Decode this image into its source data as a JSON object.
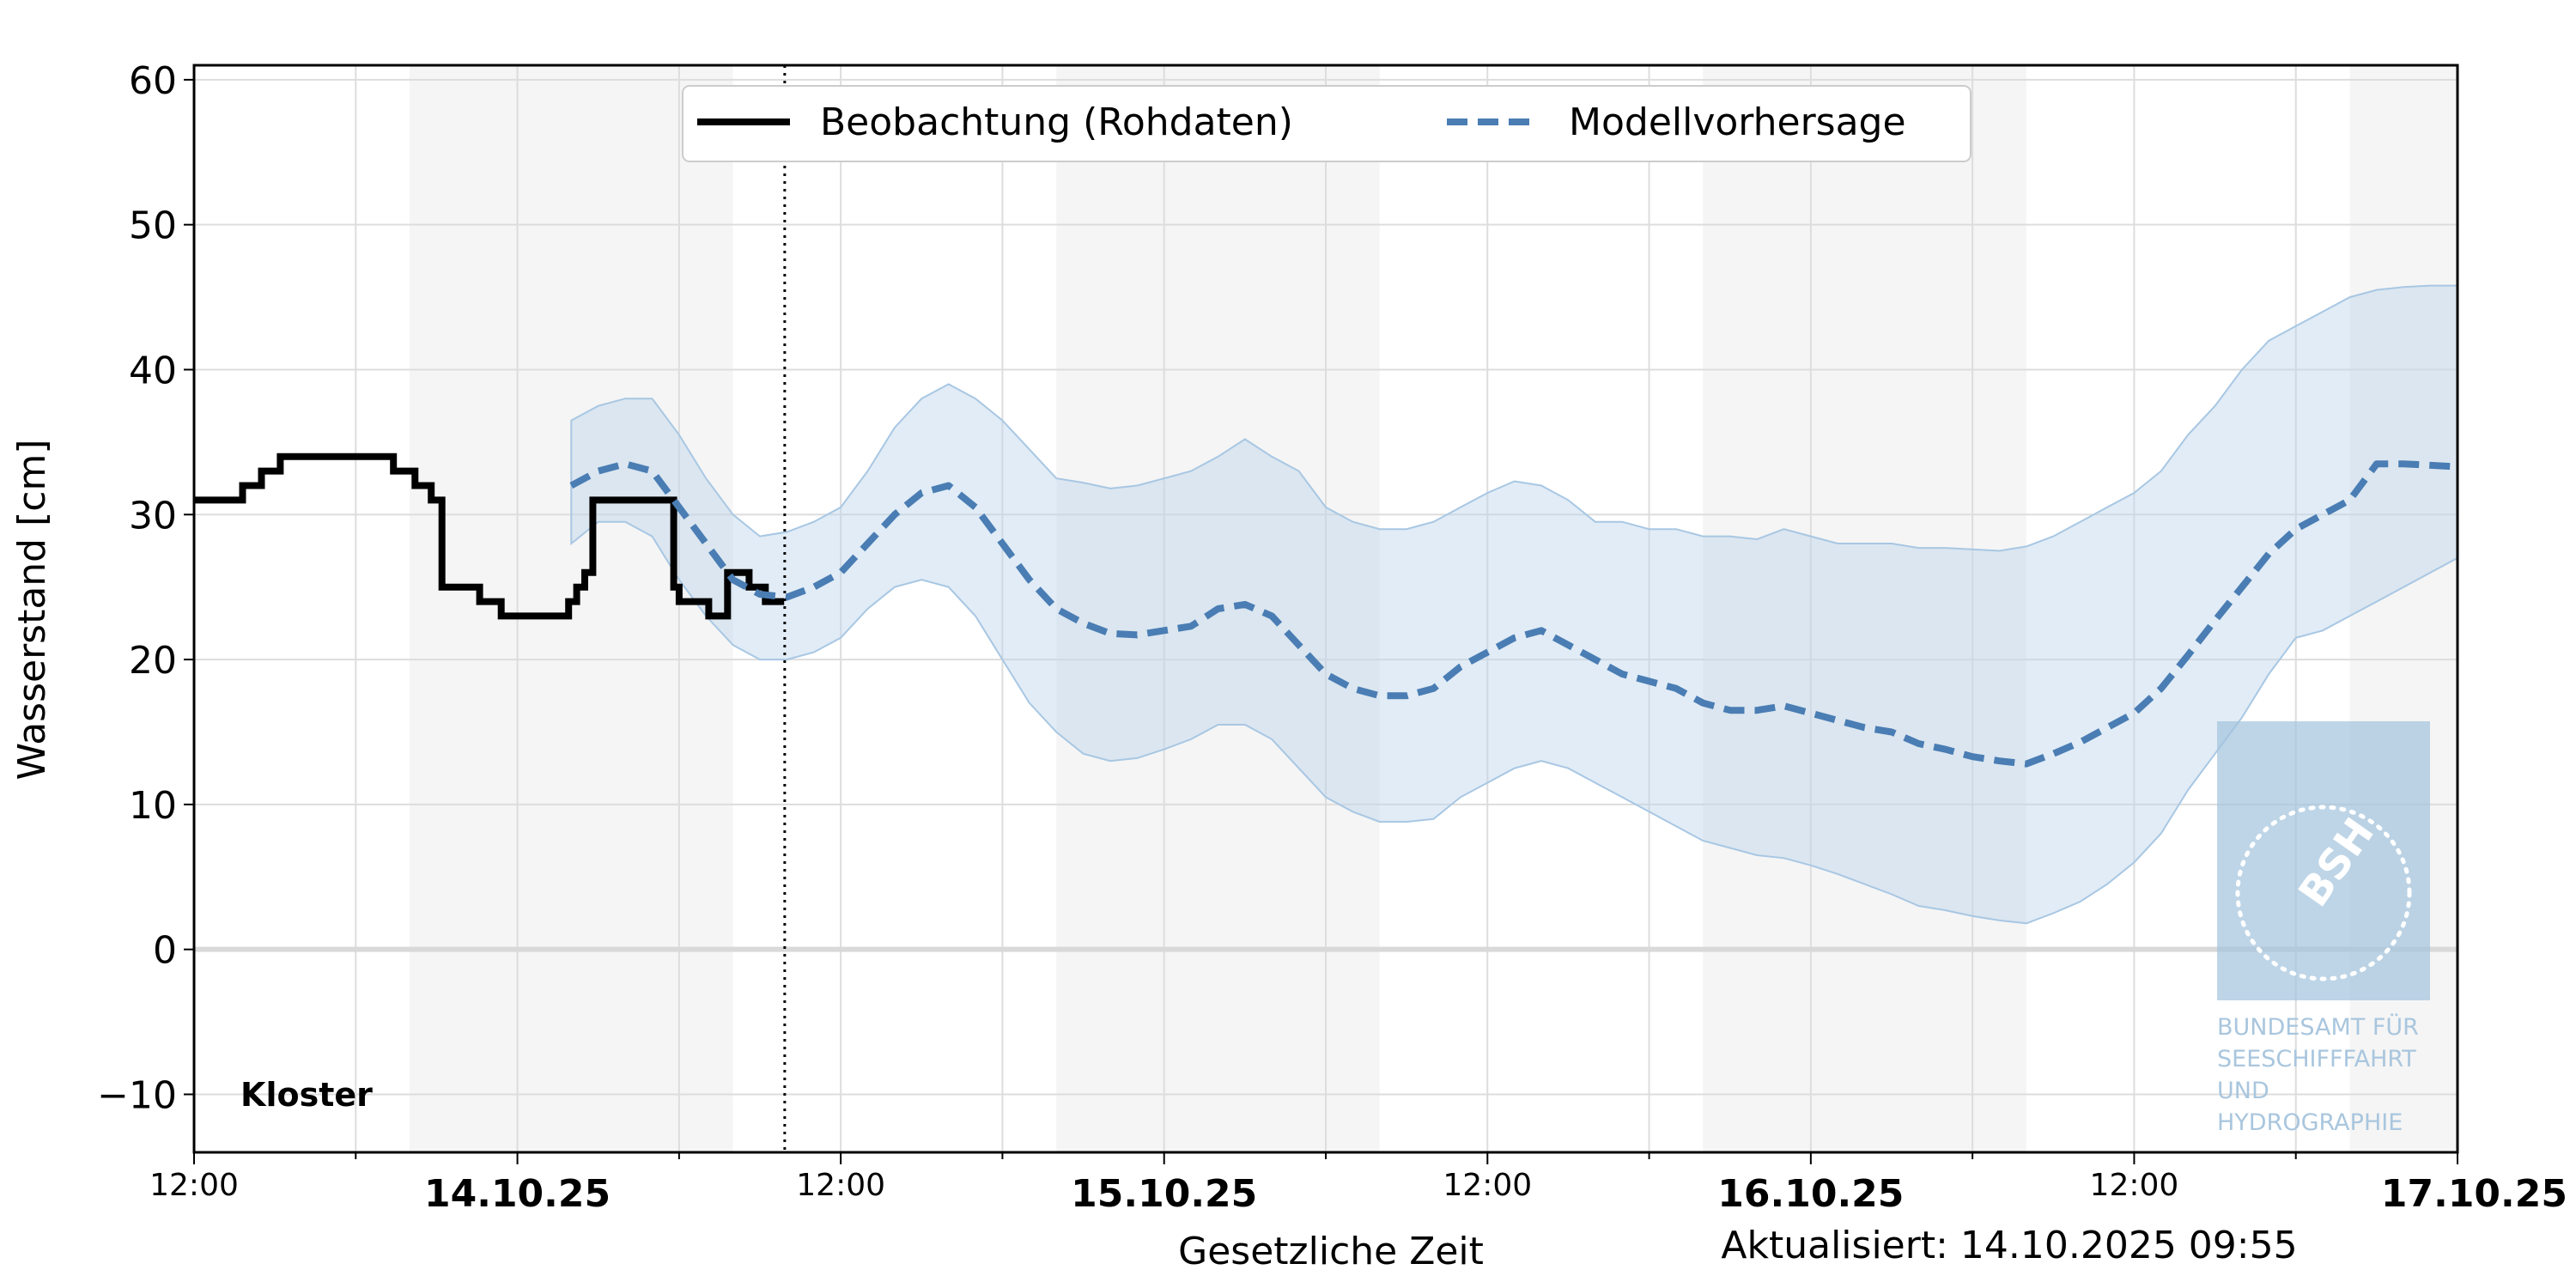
{
  "chart_data": {
    "type": "line",
    "title": "",
    "xlabel": "Gesetzliche Zeit",
    "ylabel": "Wasserstand [cm]",
    "location_label": "Kloster",
    "updated_label": "Aktualisiert: 14.10.2025 09:55",
    "ylim": [
      -14,
      61
    ],
    "yticks": [
      -10,
      0,
      10,
      20,
      30,
      40,
      50,
      60
    ],
    "ytick_labels": [
      "−10",
      "0",
      "10",
      "20",
      "30",
      "40",
      "50",
      "60"
    ],
    "xlim_hours": [
      -12,
      72
    ],
    "x_origin": "14.10.2025 00:00",
    "grid": true,
    "legend_placement": "top-center",
    "xtick_labels": [
      {
        "h": -12,
        "label": "12:00",
        "bold": false
      },
      {
        "h": 0,
        "label": "14.10.25",
        "bold": true
      },
      {
        "h": 12,
        "label": "12:00",
        "bold": false
      },
      {
        "h": 24,
        "label": "15.10.25",
        "bold": true
      },
      {
        "h": 36,
        "label": "12:00",
        "bold": false
      },
      {
        "h": 48,
        "label": "16.10.25",
        "bold": true
      },
      {
        "h": 60,
        "label": "12:00",
        "bold": false
      },
      {
        "h": 72,
        "label": "17.10.25",
        "bold": true
      }
    ],
    "night_bands": [
      [
        -4,
        8
      ],
      [
        20,
        32
      ],
      [
        44,
        56
      ],
      [
        68,
        72
      ]
    ],
    "now_hour": 9.92,
    "series": [
      {
        "name": "Beobachtung (Rohdaten)",
        "color": "#000000",
        "style": "solid-step",
        "x": [
          -12,
          -10.8,
          -10.2,
          -9.5,
          -8.8,
          -5.4,
          -4.6,
          -4.2,
          -3.8,
          -3.2,
          -2.8,
          -1.4,
          -0.6,
          1.7,
          1.9,
          2.2,
          2.5,
          2.8,
          3.1,
          3.4,
          4.6,
          5.8,
          6.0,
          6.6,
          7.1,
          7.8,
          8.3,
          8.6,
          9.2,
          9.9
        ],
        "y": [
          31,
          31,
          32,
          33,
          34,
          34,
          33,
          33,
          32,
          31,
          25,
          24,
          23,
          23,
          24,
          25,
          26,
          31,
          31,
          31,
          31,
          25,
          24,
          24,
          23,
          26,
          26,
          25,
          24,
          24
        ]
      },
      {
        "name": "Modellvorhersage",
        "color": "#4a7db3",
        "style": "dashed",
        "x": [
          2,
          3,
          4,
          5,
          6,
          7,
          8,
          9,
          10,
          11,
          12,
          13,
          14,
          15,
          16,
          17,
          18,
          19,
          20,
          21,
          22,
          23,
          24,
          25,
          26,
          27,
          28,
          29,
          30,
          31,
          32,
          33,
          34,
          35,
          36,
          37,
          38,
          39,
          40,
          41,
          42,
          43,
          44,
          45,
          46,
          47,
          48,
          49,
          50,
          51,
          52,
          53,
          54,
          55,
          56,
          57,
          58,
          59,
          60,
          61,
          62,
          63,
          64,
          65,
          66,
          67,
          68,
          69,
          70,
          71,
          72
        ],
        "y": [
          32.0,
          33.0,
          33.5,
          33.0,
          30.5,
          28.0,
          25.5,
          24.5,
          24.3,
          25.0,
          26.0,
          28.0,
          30.0,
          31.5,
          32.0,
          30.5,
          28.0,
          25.5,
          23.5,
          22.5,
          21.8,
          21.7,
          22.0,
          22.3,
          23.5,
          23.8,
          23.0,
          21.0,
          19.0,
          18.0,
          17.5,
          17.5,
          18.0,
          19.5,
          20.5,
          21.5,
          22.0,
          21.0,
          20.0,
          19.0,
          18.5,
          18.0,
          17.0,
          16.5,
          16.5,
          16.8,
          16.3,
          15.8,
          15.3,
          15.0,
          14.2,
          13.8,
          13.3,
          13.0,
          12.8,
          13.5,
          14.3,
          15.3,
          16.3,
          18.0,
          20.3,
          22.7,
          25.0,
          27.3,
          29.0,
          30.0,
          31.0,
          33.5,
          33.5,
          33.4,
          33.3
        ]
      }
    ],
    "band": {
      "color": "#bcd4ea",
      "x": [
        2,
        3,
        4,
        5,
        6,
        7,
        8,
        9,
        10,
        11,
        12,
        13,
        14,
        15,
        16,
        17,
        18,
        19,
        20,
        21,
        22,
        23,
        24,
        25,
        26,
        27,
        28,
        29,
        30,
        31,
        32,
        33,
        34,
        35,
        36,
        37,
        38,
        39,
        40,
        41,
        42,
        43,
        44,
        45,
        46,
        47,
        48,
        49,
        50,
        51,
        52,
        53,
        54,
        55,
        56,
        57,
        58,
        59,
        60,
        61,
        62,
        63,
        64,
        65,
        66,
        67,
        68,
        69,
        70,
        71,
        72
      ],
      "low": [
        28.0,
        29.5,
        29.5,
        28.5,
        25.5,
        23.0,
        21.0,
        20.0,
        20.0,
        20.5,
        21.5,
        23.5,
        25.0,
        25.5,
        25.0,
        23.0,
        20.0,
        17.0,
        15.0,
        13.5,
        13.0,
        13.2,
        13.8,
        14.5,
        15.5,
        15.5,
        14.5,
        12.5,
        10.5,
        9.5,
        8.8,
        8.8,
        9.0,
        10.5,
        11.5,
        12.5,
        13.0,
        12.5,
        11.5,
        10.5,
        9.5,
        8.5,
        7.5,
        7.0,
        6.5,
        6.3,
        5.8,
        5.2,
        4.5,
        3.8,
        3.0,
        2.7,
        2.3,
        2.0,
        1.8,
        2.5,
        3.3,
        4.5,
        6.0,
        8.0,
        11.0,
        13.5,
        16.0,
        19.0,
        21.5,
        22.0,
        23.0,
        24.0,
        25.0,
        26.0,
        27.0
      ],
      "high": [
        36.5,
        37.5,
        38.0,
        38.0,
        35.5,
        32.5,
        30.0,
        28.5,
        28.8,
        29.5,
        30.5,
        33.0,
        36.0,
        38.0,
        39.0,
        38.0,
        36.5,
        34.5,
        32.5,
        32.2,
        31.8,
        32.0,
        32.5,
        33.0,
        34.0,
        35.2,
        34.0,
        33.0,
        30.5,
        29.5,
        29.0,
        29.0,
        29.5,
        30.5,
        31.5,
        32.3,
        32.0,
        31.0,
        29.5,
        29.5,
        29.0,
        29.0,
        28.5,
        28.5,
        28.3,
        29.0,
        28.5,
        28.0,
        28.0,
        28.0,
        27.7,
        27.7,
        27.6,
        27.5,
        27.8,
        28.5,
        29.5,
        30.5,
        31.5,
        33.0,
        35.5,
        37.5,
        40.0,
        42.0,
        43.0,
        44.0,
        45.0,
        45.5,
        45.7,
        45.8,
        45.8
      ]
    },
    "watermark_lines": [
      "BUNDESAMT FÜR",
      "SEESCHIFFFAHRT",
      "UND",
      "HYDROGRAPHIE"
    ],
    "watermark_logo_text": "BSH"
  }
}
